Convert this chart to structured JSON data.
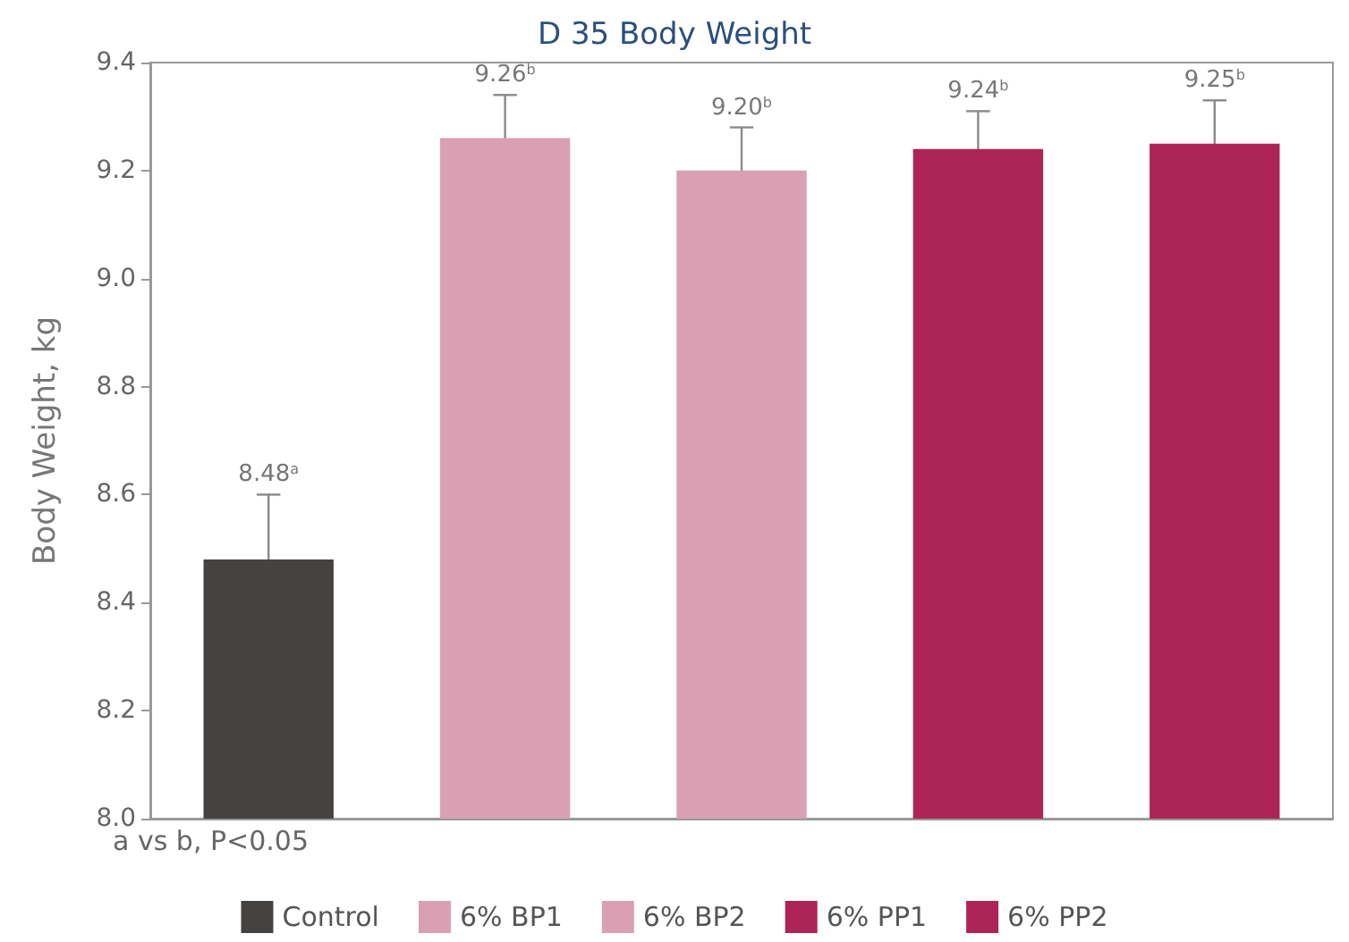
{
  "chart_data": {
    "type": "bar",
    "title": "D 35 Body Weight",
    "ylabel": "Body Weight, kg",
    "categories": [
      null,
      null,
      null,
      null,
      null
    ],
    "series": [
      {
        "name": "Control",
        "color": "#454341",
        "values": [
          8.48,
          null,
          null,
          null,
          null
        ],
        "errors": [
          0.12,
          null,
          null,
          null,
          null
        ],
        "value_labels": [
          "8.48$^{a}$",
          null,
          null,
          null,
          null
        ]
      },
      {
        "name": "6% BP1",
        "color": "#d9a0b4",
        "values": [
          null,
          9.26,
          null,
          null,
          null
        ],
        "errors": [
          null,
          0.08,
          null,
          null,
          null
        ],
        "value_labels": [
          null,
          "9.26$^{b}$",
          null,
          null,
          null
        ]
      },
      {
        "name": "6% BP2",
        "color": "#d9a0b4",
        "values": [
          null,
          null,
          9.2,
          null,
          null
        ],
        "errors": [
          null,
          null,
          0.08,
          null,
          null
        ],
        "value_labels": [
          null,
          null,
          "9.20$^{b}$",
          null,
          null
        ]
      },
      {
        "name": "6% PP1",
        "color": "#ad2457",
        "values": [
          null,
          null,
          null,
          9.24,
          null
        ],
        "errors": [
          null,
          null,
          null,
          0.07,
          null
        ],
        "value_labels": [
          null,
          null,
          null,
          "9.24$^{b}$",
          null
        ]
      },
      {
        "name": "6% PP2",
        "color": "#ad2457",
        "values": [
          null,
          null,
          null,
          null,
          9.25
        ],
        "errors": [
          null,
          null,
          null,
          null,
          0.08
        ],
        "value_labels": [
          null,
          null,
          null,
          null,
          "9.25$^{b}$"
        ]
      }
    ],
    "ylim": [
      8.0,
      9.4
    ],
    "yticks": [
      {
        "value": 8.0,
        "label": "8.0"
      },
      {
        "value": 8.2,
        "label": "8.2"
      },
      {
        "value": 8.4,
        "label": "8.4"
      },
      {
        "value": 8.6,
        "label": "8.6"
      },
      {
        "value": 8.8,
        "label": "8.8"
      },
      {
        "value": 9.0,
        "label": "9.0"
      },
      {
        "value": 9.2,
        "label": "9.2"
      },
      {
        "value": 9.4,
        "label": "9.4"
      }
    ],
    "grid": false,
    "legend": "bottom",
    "annotations": [
      "a vs b, P<0.05"
    ]
  }
}
